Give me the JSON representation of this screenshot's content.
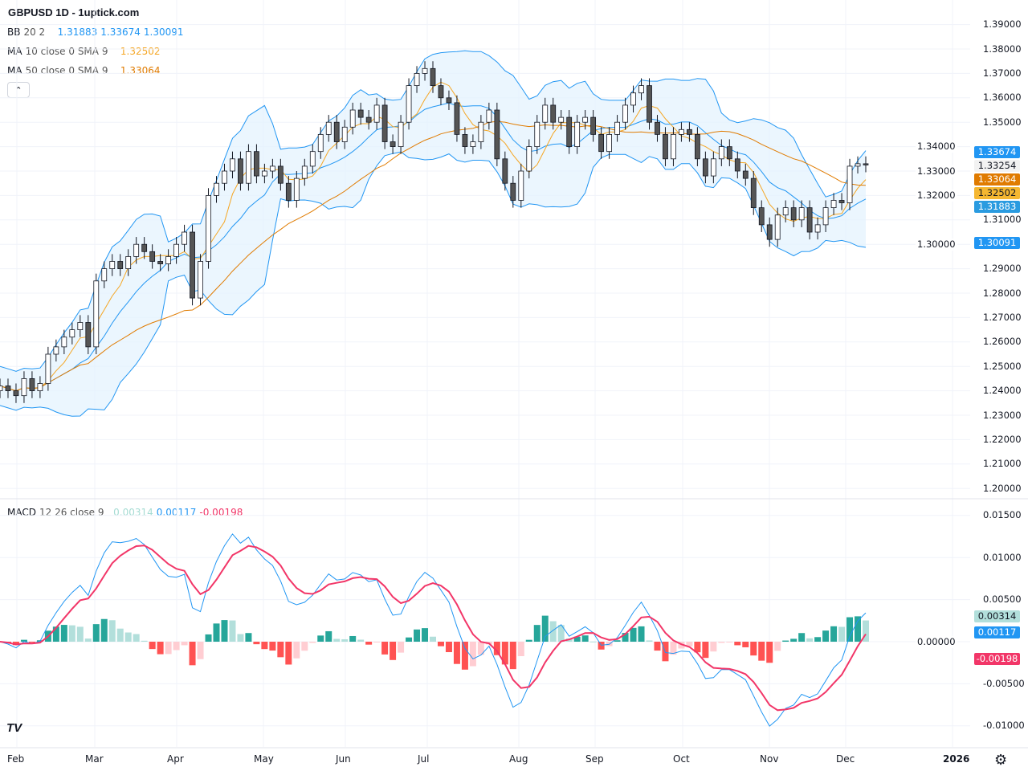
{
  "header": {
    "title": "GBPUSD 1D - 1uptick.com"
  },
  "legend": {
    "bb": {
      "label": "BB",
      "params": "20 2",
      "values": [
        "1.31883",
        "1.33674",
        "1.30091"
      ],
      "color": "#2196f3"
    },
    "ma10": {
      "label": "MA",
      "params": "10 close 0 SMA 9",
      "value": "1.32502",
      "color": "#f5a623"
    },
    "ma50": {
      "label": "MA",
      "params": "50 close 0 SMA 9",
      "value": "1.33064",
      "color": "#e07b00"
    },
    "macd": {
      "label": "MACD",
      "params": "12 26 close 9",
      "values": [
        "0.00314",
        "0.00117",
        "-0.00198"
      ],
      "colors": [
        "#a5dcd3",
        "#2196f3",
        "#f23668"
      ]
    },
    "collapse_icon": "chevron-up-icon"
  },
  "price_axis": {
    "ticks": [
      "1.39000",
      "1.38000",
      "1.37000",
      "1.36000",
      "1.35000",
      "1.34000",
      "1.33000",
      "1.32000",
      "1.31000",
      "1.30000",
      "1.29000",
      "1.28000",
      "1.27000",
      "1.26000",
      "1.25000",
      "1.24000",
      "1.23000",
      "1.22000",
      "1.21000",
      "1.20000"
    ],
    "tags": [
      {
        "text": "1.33674",
        "value": 1.33674,
        "bg": "#2196f3",
        "fg": "#ffffff"
      },
      {
        "text": "1.33254",
        "value": 1.33254,
        "bg": "#f2f2f2",
        "fg": "#131722"
      },
      {
        "text": "1.33064",
        "value": 1.33064,
        "bg": "#e07b00",
        "fg": "#ffffff"
      },
      {
        "text": "1.32502",
        "value": 1.32502,
        "bg": "#f5b731",
        "fg": "#131722"
      },
      {
        "text": "1.31883",
        "value": 1.31883,
        "bg": "#2a9be0",
        "fg": "#ffffff"
      },
      {
        "text": "1.30091",
        "value": 1.30091,
        "bg": "#2196f3",
        "fg": "#ffffff"
      }
    ]
  },
  "macd_axis": {
    "ticks": [
      "0.01500",
      "0.01000",
      "0.00500",
      "0.00000",
      "-0.00500",
      "-0.01000"
    ],
    "tags": [
      {
        "text": "0.00314",
        "value": 0.0045,
        "bg": "#b2dfdb",
        "fg": "#131722"
      },
      {
        "text": "0.00117",
        "value": 0.0012,
        "bg": "#2196f3",
        "fg": "#ffffff"
      },
      {
        "text": "-0.00198",
        "value": -0.002,
        "bg": "#f23668",
        "fg": "#ffffff"
      }
    ]
  },
  "time_axis": {
    "labels": [
      "Feb",
      "Mar",
      "Apr",
      "May",
      "Jun",
      "Jul",
      "Aug",
      "Sep",
      "Oct",
      "Nov",
      "Dec",
      "2026"
    ]
  },
  "chart_data": {
    "type": "candlestick",
    "symbol": "GBPUSD",
    "interval": "1D",
    "ylim": [
      1.2,
      1.39
    ],
    "macd_ylim": [
      -0.01,
      0.015
    ],
    "grid": true,
    "colors": {
      "up": "#ffffff",
      "down": "#555555",
      "bb_line": "#2196f3",
      "bb_fill": "#e3f2fd",
      "ma10": "#f5a623",
      "ma50": "#e07b00",
      "macd": "#2196f3",
      "signal": "#f23668",
      "hist_up_strong": "#26a69a",
      "hist_up_weak": "#b2dfdb",
      "hist_down_strong": "#ff5252",
      "hist_down_weak": "#ffcdd2"
    },
    "closes": [
      1.242,
      1.24,
      1.238,
      1.245,
      1.24,
      1.243,
      1.255,
      1.258,
      1.262,
      1.265,
      1.268,
      1.258,
      1.285,
      1.29,
      1.293,
      1.29,
      1.295,
      1.3,
      1.297,
      1.293,
      1.292,
      1.295,
      1.3,
      1.305,
      1.278,
      1.293,
      1.32,
      1.325,
      1.33,
      1.335,
      1.325,
      1.338,
      1.328,
      1.33,
      1.332,
      1.325,
      1.318,
      1.327,
      1.332,
      1.338,
      1.345,
      1.35,
      1.342,
      1.348,
      1.355,
      1.352,
      1.35,
      1.357,
      1.342,
      1.34,
      1.35,
      1.365,
      1.37,
      1.372,
      1.365,
      1.36,
      1.358,
      1.345,
      1.34,
      1.342,
      1.35,
      1.355,
      1.335,
      1.325,
      1.318,
      1.33,
      1.34,
      1.35,
      1.357,
      1.35,
      1.352,
      1.34,
      1.35,
      1.352,
      1.345,
      1.338,
      1.345,
      1.35,
      1.357,
      1.362,
      1.365,
      1.35,
      1.345,
      1.335,
      1.345,
      1.347,
      1.345,
      1.335,
      1.328,
      1.335,
      1.34,
      1.335,
      1.33,
      1.327,
      1.315,
      1.308,
      1.302,
      1.312,
      1.315,
      1.31,
      1.315,
      1.305,
      1.308,
      1.315,
      1.318,
      1.317,
      1.332,
      1.333,
      1.3325
    ]
  }
}
